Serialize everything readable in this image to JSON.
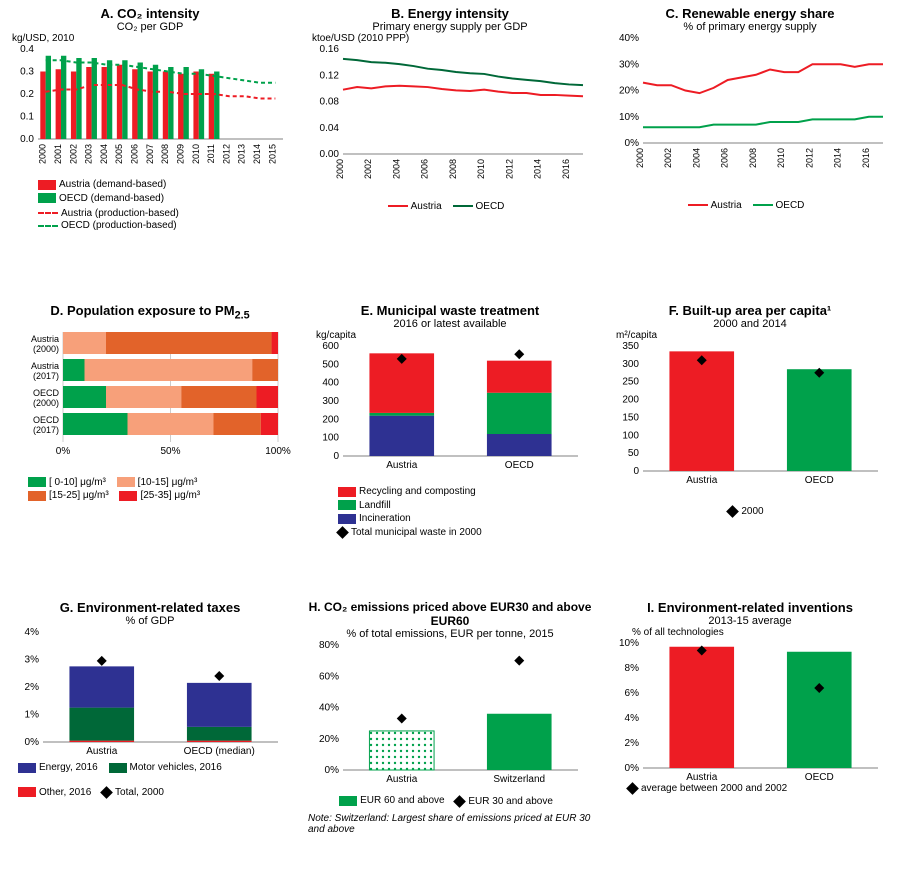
{
  "colors": {
    "red": "#ed1c24",
    "green": "#00a14b",
    "darkgreen": "#006838",
    "blue": "#2e3192",
    "orange_light": "#f7a07a",
    "orange_dark": "#e2632a",
    "axis": "#808080",
    "btick": "#d0d0d0"
  },
  "A": {
    "title": "A. CO₂ intensity",
    "subtitle": "CO₂ per GDP",
    "ylabel": "kg/USD, 2010",
    "ylim": [
      0,
      0.4
    ],
    "yticks": [
      0.0,
      0.1,
      0.2,
      0.3,
      0.4
    ],
    "years": [
      "2000",
      "2001",
      "2002",
      "2003",
      "2004",
      "2005",
      "2006",
      "2007",
      "2008",
      "2009",
      "2010",
      "2011",
      "2012",
      "2013",
      "2014",
      "2015"
    ],
    "austria_demand": [
      0.3,
      0.31,
      0.3,
      0.32,
      0.32,
      0.33,
      0.31,
      0.3,
      0.3,
      0.29,
      0.3,
      0.29
    ],
    "oecd_demand": [
      0.37,
      0.37,
      0.36,
      0.36,
      0.35,
      0.35,
      0.34,
      0.33,
      0.32,
      0.32,
      0.31,
      0.3
    ],
    "austria_prod": [
      0.21,
      0.22,
      0.22,
      0.24,
      0.24,
      0.24,
      0.22,
      0.21,
      0.21,
      0.2,
      0.2,
      0.2,
      0.19,
      0.19,
      0.18,
      0.18
    ],
    "oecd_prod": [
      0.35,
      0.35,
      0.34,
      0.34,
      0.33,
      0.33,
      0.32,
      0.31,
      0.3,
      0.29,
      0.29,
      0.28,
      0.27,
      0.26,
      0.25,
      0.25
    ],
    "legend": {
      "a": "Austria (demand-based)",
      "b": "OECD (demand-based)",
      "c": "Austria (production-based)",
      "d": "OECD (production-based)"
    }
  },
  "B": {
    "title": "B. Energy intensity",
    "subtitle": "Primary energy supply per GDP",
    "ylabel": "ktoe/USD (2010 PPP)",
    "ylim": [
      0.0,
      0.16
    ],
    "yticks": [
      0.0,
      0.04,
      0.08,
      0.12,
      0.16
    ],
    "years": [
      "2000",
      "2002",
      "2004",
      "2006",
      "2008",
      "2010",
      "2012",
      "2014",
      "2016"
    ],
    "years_all": [
      2000,
      2001,
      2002,
      2003,
      2004,
      2005,
      2006,
      2007,
      2008,
      2009,
      2010,
      2011,
      2012,
      2013,
      2014,
      2015,
      2016,
      2017
    ],
    "austria": [
      0.098,
      0.102,
      0.1,
      0.103,
      0.104,
      0.103,
      0.102,
      0.099,
      0.097,
      0.096,
      0.098,
      0.095,
      0.093,
      0.093,
      0.09,
      0.09,
      0.089,
      0.088
    ],
    "oecd": [
      0.145,
      0.143,
      0.14,
      0.139,
      0.137,
      0.134,
      0.13,
      0.128,
      0.125,
      0.123,
      0.122,
      0.118,
      0.115,
      0.113,
      0.111,
      0.108,
      0.106,
      0.105
    ],
    "legend": {
      "a": "Austria",
      "b": "OECD"
    }
  },
  "C": {
    "title": "C. Renewable energy share",
    "subtitle": "% of primary energy supply",
    "ylim": [
      0,
      40
    ],
    "yticks": [
      0,
      10,
      20,
      30,
      40
    ],
    "years": [
      "2000",
      "2002",
      "2004",
      "2006",
      "2008",
      "2010",
      "2012",
      "2014",
      "2016"
    ],
    "years_all": [
      2000,
      2001,
      2002,
      2003,
      2004,
      2005,
      2006,
      2007,
      2008,
      2009,
      2010,
      2011,
      2012,
      2013,
      2014,
      2015,
      2016,
      2017
    ],
    "austria": [
      23,
      22,
      22,
      20,
      19,
      21,
      24,
      25,
      26,
      28,
      27,
      27,
      30,
      30,
      30,
      29,
      30,
      30
    ],
    "oecd": [
      6,
      6,
      6,
      6,
      6,
      7,
      7,
      7,
      7,
      8,
      8,
      8,
      9,
      9,
      9,
      9,
      10,
      10
    ],
    "legend": {
      "a": "Austria",
      "b": "OECD"
    }
  },
  "D": {
    "title": "D. Population exposure to PM",
    "sub": "2.5",
    "labels": [
      "Austria\n(2000)",
      "Austria\n(2017)",
      "OECD\n(2000)",
      "OECD\n(2017)"
    ],
    "bands": [
      "[ 0-10] μg/m³",
      "[10-15] μg/m³",
      "[15-25] μg/m³",
      "[25-35] μg/m³"
    ],
    "band_colors": [
      "#00a14b",
      "#f7a07a",
      "#e2632a",
      "#ed1c24"
    ],
    "data": [
      [
        0,
        20,
        77,
        3
      ],
      [
        10,
        78,
        12,
        0
      ],
      [
        20,
        35,
        35,
        10
      ],
      [
        30,
        40,
        22,
        8
      ]
    ],
    "xticks": [
      0,
      50,
      100
    ]
  },
  "E": {
    "title": "E. Municipal waste treatment",
    "subtitle": "2016 or latest available",
    "ylabel": "kg/capita",
    "ylim": [
      0,
      600
    ],
    "yticks": [
      0,
      100,
      200,
      300,
      400,
      500,
      600
    ],
    "cats": [
      "Austria",
      "OECD"
    ],
    "series": [
      "Recycling and composting",
      "Landfill",
      "Incineration"
    ],
    "series_colors": [
      "#ed1c24",
      "#00a14b",
      "#2e3192"
    ],
    "values": [
      [
        325,
        15,
        220
      ],
      [
        175,
        225,
        120
      ]
    ],
    "marker_label": "Total municipal waste in 2000",
    "marker_vals": [
      530,
      555
    ]
  },
  "F": {
    "title": "F. Built-up area per capita¹",
    "subtitle": "2000 and 2014",
    "ylabel": "m²/capita",
    "ylim": [
      0,
      350
    ],
    "yticks": [
      0,
      50,
      100,
      150,
      200,
      250,
      300,
      350
    ],
    "cats": [
      "Austria",
      "OECD"
    ],
    "values": [
      335,
      285
    ],
    "bar_colors": [
      "#ed1c24",
      "#00a14b"
    ],
    "marker_label": "2000",
    "marker_vals": [
      310,
      275
    ]
  },
  "G": {
    "title": "G. Environment-related taxes",
    "subtitle": "% of GDP",
    "ylim": [
      0,
      4
    ],
    "yticks": [
      0,
      1,
      2,
      3,
      4
    ],
    "cats": [
      "Austria",
      "OECD (median)"
    ],
    "series": [
      "Energy, 2016",
      "Motor vehicles, 2016",
      "Other, 2016"
    ],
    "series_colors": [
      "#2e3192",
      "#006838",
      "#ed1c24"
    ],
    "values": [
      [
        1.5,
        1.2,
        0.05
      ],
      [
        1.6,
        0.5,
        0.05
      ]
    ],
    "marker_label": "Total, 2000",
    "marker_vals": [
      2.95,
      2.4
    ]
  },
  "H": {
    "title": "H. CO₂ emissions priced above EUR30 and above EUR60",
    "subtitle": "% of total emissions, EUR per tonne, 2015",
    "ylim": [
      0,
      80
    ],
    "yticks": [
      0,
      20,
      40,
      60,
      80
    ],
    "cats": [
      "Austria",
      "Switzerland"
    ],
    "bar_vals": [
      25,
      36
    ],
    "bar_colors": [
      "#00a14b",
      "#00a14b"
    ],
    "pattern": [
      true,
      false
    ],
    "marker_label": "EUR 30 and above",
    "bar_label": "EUR 60 and above",
    "marker_vals": [
      33,
      70
    ],
    "note": "Note: Switzerland: Largest share of emissions priced at EUR 30 and above"
  },
  "I": {
    "title": "I. Environment-related inventions",
    "subtitle": "2013-15 average",
    "ylabel": "% of all technologies",
    "ylim": [
      0,
      10
    ],
    "yticks": [
      0,
      2,
      4,
      6,
      8,
      10
    ],
    "cats": [
      "Austria",
      "OECD"
    ],
    "values": [
      9.7,
      9.3
    ],
    "bar_colors": [
      "#ed1c24",
      "#00a14b"
    ],
    "marker_label": "average between 2000 and 2002",
    "marker_vals": [
      9.4,
      6.4
    ]
  }
}
